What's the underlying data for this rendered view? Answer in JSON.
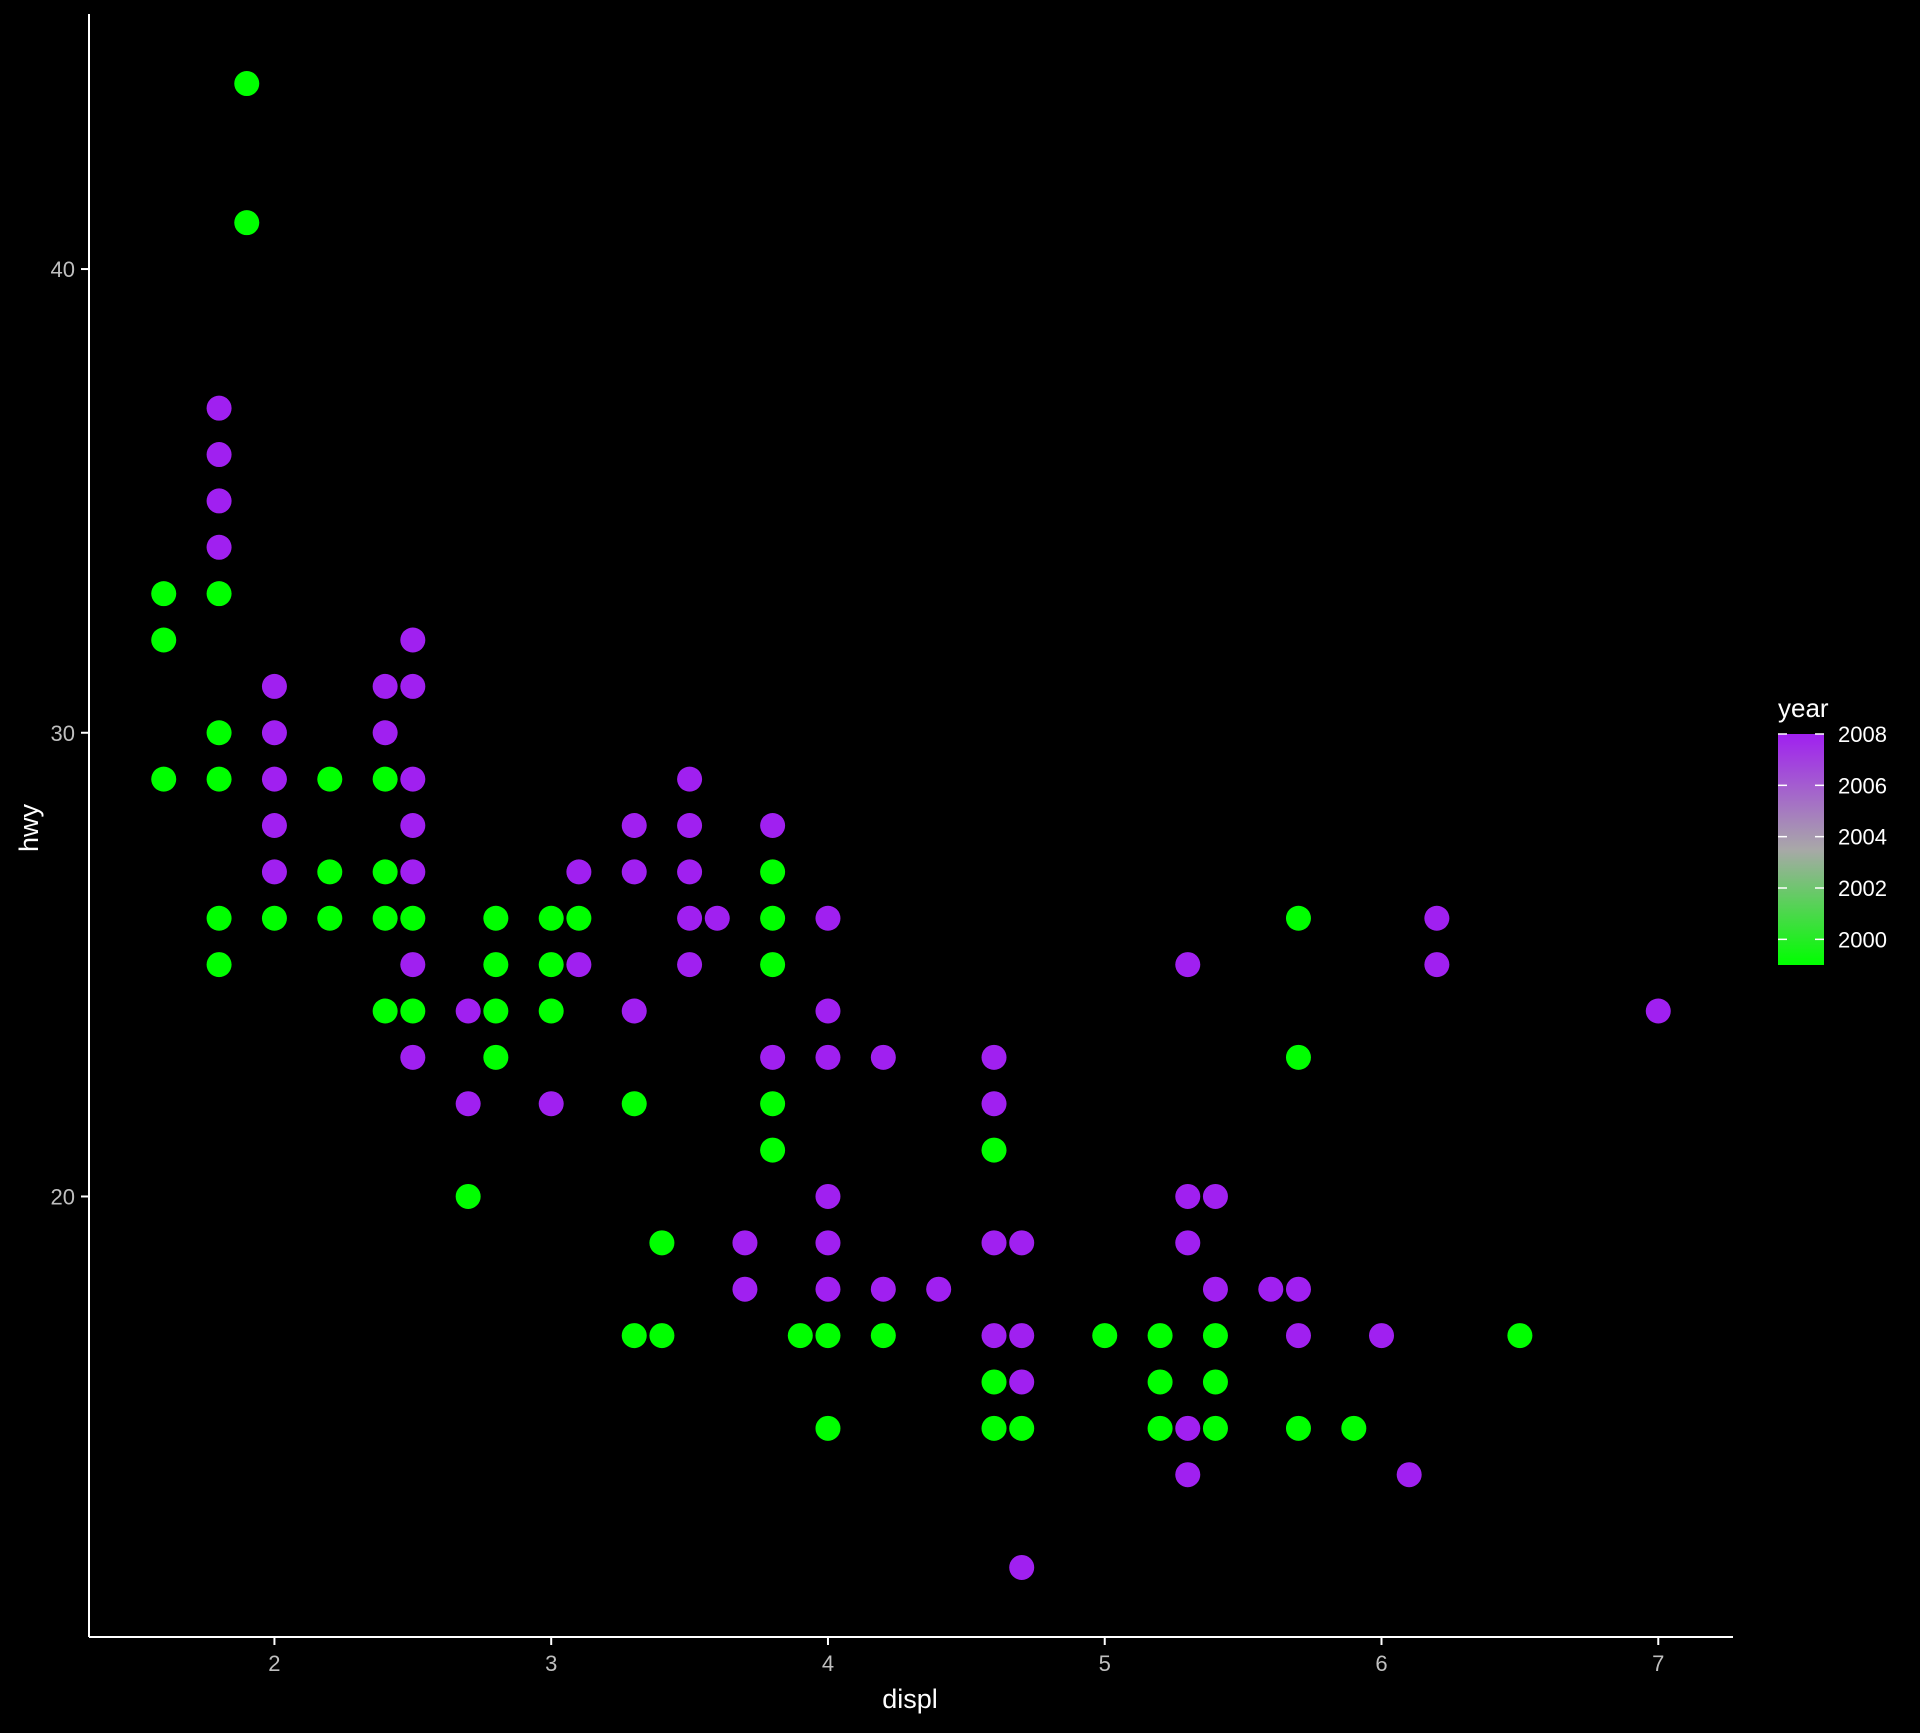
{
  "chart_data": {
    "type": "scatter",
    "title": "",
    "xlabel": "displ",
    "ylabel": "hwy",
    "xlim": [
      1.33,
      7.27
    ],
    "ylim": [
      10.5,
      45.5
    ],
    "x_ticks": [
      "2",
      "3",
      "4",
      "5",
      "6",
      "7"
    ],
    "x_tick_values": [
      2,
      3,
      4,
      5,
      6,
      7
    ],
    "y_ticks": [
      "20",
      "30",
      "40"
    ],
    "y_tick_values": [
      20,
      30,
      40
    ],
    "grid": false,
    "background": "#000000",
    "axis_color": "#ffffff",
    "tick_label_color": "#bfbfbf",
    "color_scale": {
      "title": "year",
      "low": 1999,
      "high": 2008,
      "low_color": "#00ff00",
      "high_color": "#a020f0",
      "legend_placement": "right",
      "labels": [
        "2008",
        "2006",
        "2004",
        "2002",
        "2000"
      ],
      "label_values": [
        2008,
        2006,
        2004,
        2002,
        2000
      ]
    },
    "series": [
      {
        "year": 1999,
        "color": "#00ff00",
        "points": [
          [
            1.6,
            29
          ],
          [
            1.6,
            32
          ],
          [
            1.6,
            33
          ],
          [
            1.8,
            25
          ],
          [
            1.8,
            26
          ],
          [
            1.8,
            29
          ],
          [
            1.8,
            30
          ],
          [
            1.8,
            33
          ],
          [
            1.9,
            41
          ],
          [
            1.9,
            44
          ],
          [
            2.0,
            26
          ],
          [
            2.2,
            26
          ],
          [
            2.2,
            27
          ],
          [
            2.2,
            29
          ],
          [
            2.4,
            24
          ],
          [
            2.4,
            26
          ],
          [
            2.4,
            27
          ],
          [
            2.4,
            29
          ],
          [
            2.5,
            24
          ],
          [
            2.5,
            26
          ],
          [
            2.7,
            20
          ],
          [
            2.8,
            23
          ],
          [
            2.8,
            24
          ],
          [
            2.8,
            25
          ],
          [
            2.8,
            26
          ],
          [
            3.0,
            24
          ],
          [
            3.0,
            25
          ],
          [
            3.0,
            26
          ],
          [
            3.1,
            26
          ],
          [
            3.3,
            17
          ],
          [
            3.3,
            22
          ],
          [
            3.4,
            17
          ],
          [
            3.4,
            19
          ],
          [
            3.8,
            21
          ],
          [
            3.8,
            22
          ],
          [
            3.8,
            25
          ],
          [
            3.8,
            26
          ],
          [
            3.8,
            27
          ],
          [
            3.9,
            17
          ],
          [
            4.0,
            15
          ],
          [
            4.0,
            17
          ],
          [
            4.2,
            17
          ],
          [
            4.6,
            15
          ],
          [
            4.6,
            16
          ],
          [
            4.6,
            21
          ],
          [
            4.7,
            15
          ],
          [
            5.0,
            17
          ],
          [
            5.2,
            15
          ],
          [
            5.2,
            16
          ],
          [
            5.2,
            17
          ],
          [
            5.4,
            15
          ],
          [
            5.4,
            16
          ],
          [
            5.4,
            17
          ],
          [
            5.7,
            15
          ],
          [
            5.7,
            23
          ],
          [
            5.7,
            26
          ],
          [
            5.9,
            15
          ],
          [
            6.5,
            17
          ]
        ]
      },
      {
        "year": 2008,
        "color": "#a020f0",
        "points": [
          [
            1.8,
            34
          ],
          [
            1.8,
            35
          ],
          [
            1.8,
            36
          ],
          [
            1.8,
            37
          ],
          [
            2.0,
            27
          ],
          [
            2.0,
            28
          ],
          [
            2.0,
            29
          ],
          [
            2.0,
            30
          ],
          [
            2.0,
            31
          ],
          [
            2.4,
            30
          ],
          [
            2.4,
            31
          ],
          [
            2.5,
            23
          ],
          [
            2.5,
            25
          ],
          [
            2.5,
            27
          ],
          [
            2.5,
            28
          ],
          [
            2.5,
            29
          ],
          [
            2.5,
            31
          ],
          [
            2.5,
            32
          ],
          [
            2.7,
            22
          ],
          [
            2.7,
            24
          ],
          [
            3.0,
            22
          ],
          [
            3.1,
            25
          ],
          [
            3.1,
            27
          ],
          [
            3.3,
            24
          ],
          [
            3.3,
            27
          ],
          [
            3.3,
            28
          ],
          [
            3.5,
            25
          ],
          [
            3.5,
            26
          ],
          [
            3.5,
            27
          ],
          [
            3.5,
            28
          ],
          [
            3.5,
            29
          ],
          [
            3.6,
            26
          ],
          [
            3.7,
            18
          ],
          [
            3.7,
            19
          ],
          [
            3.8,
            23
          ],
          [
            3.8,
            28
          ],
          [
            4.0,
            18
          ],
          [
            4.0,
            19
          ],
          [
            4.0,
            20
          ],
          [
            4.0,
            23
          ],
          [
            4.0,
            24
          ],
          [
            4.0,
            26
          ],
          [
            4.2,
            18
          ],
          [
            4.2,
            23
          ],
          [
            4.4,
            18
          ],
          [
            4.6,
            17
          ],
          [
            4.6,
            19
          ],
          [
            4.6,
            22
          ],
          [
            4.6,
            23
          ],
          [
            4.7,
            12
          ],
          [
            4.7,
            16
          ],
          [
            4.7,
            17
          ],
          [
            4.7,
            19
          ],
          [
            5.3,
            14
          ],
          [
            5.3,
            15
          ],
          [
            5.3,
            19
          ],
          [
            5.3,
            20
          ],
          [
            5.3,
            25
          ],
          [
            5.4,
            18
          ],
          [
            5.4,
            20
          ],
          [
            5.6,
            18
          ],
          [
            5.7,
            17
          ],
          [
            5.7,
            18
          ],
          [
            6.0,
            17
          ],
          [
            6.1,
            14
          ],
          [
            6.2,
            25
          ],
          [
            6.2,
            26
          ],
          [
            7.0,
            24
          ]
        ]
      }
    ]
  }
}
